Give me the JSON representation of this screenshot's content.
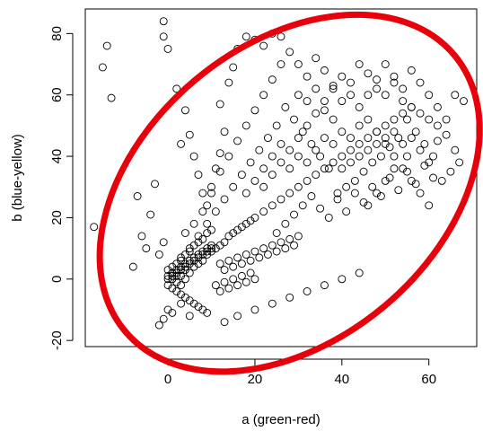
{
  "chart_data": {
    "type": "scatter",
    "xlabel": "a (green-red)",
    "ylabel": "b (blue-yellow)",
    "xlim": [
      -19,
      71
    ],
    "ylim": [
      -22,
      88
    ],
    "xticks": [
      0,
      20,
      40,
      60
    ],
    "xtick_labels": [
      "0",
      "20",
      "40",
      "60"
    ],
    "yticks": [
      -20,
      0,
      20,
      40,
      60,
      80
    ],
    "ytick_labels": [
      "-20",
      "0",
      "20",
      "40",
      "60",
      "80"
    ],
    "grid": false,
    "legend": "none",
    "marker": "open-circle",
    "marker_color": "#000000",
    "annotation": {
      "shape": "ellipse",
      "color": "#e8000b",
      "center": [
        28,
        28
      ],
      "semi_axes": [
        52,
        31
      ],
      "rotation_deg": 40
    },
    "points": [
      [
        -1,
        84
      ],
      [
        -1,
        79
      ],
      [
        0,
        75
      ],
      [
        -14,
        76
      ],
      [
        -15,
        69
      ],
      [
        -13,
        59
      ],
      [
        -17,
        17
      ],
      [
        -7,
        27
      ],
      [
        -8,
        4
      ],
      [
        -6,
        14
      ],
      [
        -5,
        10
      ],
      [
        -4,
        21
      ],
      [
        -3,
        31
      ],
      [
        -2,
        8
      ],
      [
        -1,
        12
      ],
      [
        -1,
        -13
      ],
      [
        -2,
        -15
      ],
      [
        0,
        -10
      ],
      [
        1,
        -11
      ],
      [
        3,
        -8
      ],
      [
        5,
        -12
      ],
      [
        2,
        62
      ],
      [
        4,
        55
      ],
      [
        5,
        47
      ],
      [
        6,
        40
      ],
      [
        3,
        44
      ],
      [
        7,
        34
      ],
      [
        8,
        28
      ],
      [
        9,
        24
      ],
      [
        10,
        30
      ],
      [
        11,
        36
      ],
      [
        12,
        41
      ],
      [
        13,
        48
      ],
      [
        12,
        57
      ],
      [
        14,
        64
      ],
      [
        15,
        69
      ],
      [
        16,
        75
      ],
      [
        18,
        79
      ],
      [
        20,
        78
      ],
      [
        22,
        76
      ],
      [
        24,
        80
      ],
      [
        26,
        79
      ],
      [
        28,
        74
      ],
      [
        30,
        70
      ],
      [
        32,
        66
      ],
      [
        34,
        72
      ],
      [
        36,
        68
      ],
      [
        38,
        63
      ],
      [
        40,
        58
      ],
      [
        42,
        64
      ],
      [
        44,
        70
      ],
      [
        46,
        67
      ],
      [
        48,
        62
      ],
      [
        50,
        60
      ],
      [
        52,
        64
      ],
      [
        54,
        58
      ],
      [
        56,
        56
      ],
      [
        58,
        54
      ],
      [
        60,
        52
      ],
      [
        62,
        50
      ],
      [
        64,
        47
      ],
      [
        66,
        42
      ],
      [
        67,
        38
      ],
      [
        65,
        35
      ],
      [
        63,
        32
      ],
      [
        61,
        40
      ],
      [
        59,
        44
      ],
      [
        57,
        48
      ],
      [
        55,
        52
      ],
      [
        53,
        46
      ],
      [
        51,
        43
      ],
      [
        49,
        40
      ],
      [
        47,
        38
      ],
      [
        45,
        35
      ],
      [
        43,
        32
      ],
      [
        41,
        30
      ],
      [
        39,
        28
      ],
      [
        37,
        36
      ],
      [
        35,
        40
      ],
      [
        33,
        44
      ],
      [
        31,
        48
      ],
      [
        29,
        52
      ],
      [
        27,
        56
      ],
      [
        25,
        50
      ],
      [
        23,
        46
      ],
      [
        21,
        42
      ],
      [
        19,
        38
      ],
      [
        17,
        34
      ],
      [
        15,
        30
      ],
      [
        13,
        26
      ],
      [
        11,
        22
      ],
      [
        9,
        18
      ],
      [
        7,
        14
      ],
      [
        5,
        10
      ],
      [
        3,
        6
      ],
      [
        1,
        2
      ],
      [
        0,
        0
      ],
      [
        1,
        1
      ],
      [
        2,
        2
      ],
      [
        3,
        1
      ],
      [
        4,
        3
      ],
      [
        2,
        -1
      ],
      [
        3,
        -2
      ],
      [
        4,
        0
      ],
      [
        5,
        2
      ],
      [
        6,
        4
      ],
      [
        7,
        5
      ],
      [
        8,
        6
      ],
      [
        9,
        8
      ],
      [
        10,
        9
      ],
      [
        11,
        10
      ],
      [
        12,
        11
      ],
      [
        13,
        12
      ],
      [
        14,
        14
      ],
      [
        15,
        15
      ],
      [
        16,
        16
      ],
      [
        17,
        17
      ],
      [
        18,
        18
      ],
      [
        19,
        19
      ],
      [
        20,
        20
      ],
      [
        0,
        3
      ],
      [
        1,
        4
      ],
      [
        2,
        5
      ],
      [
        3,
        7
      ],
      [
        4,
        8
      ],
      [
        5,
        9
      ],
      [
        6,
        11
      ],
      [
        7,
        12
      ],
      [
        8,
        13
      ],
      [
        9,
        15
      ],
      [
        10,
        16
      ],
      [
        0,
        -2
      ],
      [
        1,
        -3
      ],
      [
        2,
        -4
      ],
      [
        3,
        -5
      ],
      [
        4,
        -6
      ],
      [
        5,
        -7
      ],
      [
        6,
        -8
      ],
      [
        7,
        -9
      ],
      [
        8,
        -10
      ],
      [
        9,
        -11
      ],
      [
        0,
        1
      ],
      [
        1,
        0
      ],
      [
        2,
        1
      ],
      [
        3,
        3
      ],
      [
        4,
        4
      ],
      [
        5,
        5
      ],
      [
        6,
        6
      ],
      [
        7,
        7
      ],
      [
        8,
        8
      ],
      [
        9,
        9
      ],
      [
        10,
        10
      ],
      [
        1,
        2
      ],
      [
        2,
        3
      ],
      [
        3,
        4
      ],
      [
        4,
        5
      ],
      [
        5,
        6
      ],
      [
        6,
        7
      ],
      [
        7,
        8
      ],
      [
        8,
        9
      ],
      [
        9,
        10
      ],
      [
        10,
        11
      ],
      [
        12,
        5
      ],
      [
        13,
        3
      ],
      [
        14,
        6
      ],
      [
        15,
        4
      ],
      [
        16,
        7
      ],
      [
        17,
        5
      ],
      [
        18,
        8
      ],
      [
        19,
        6
      ],
      [
        20,
        9
      ],
      [
        21,
        7
      ],
      [
        22,
        10
      ],
      [
        23,
        8
      ],
      [
        24,
        11
      ],
      [
        25,
        9
      ],
      [
        26,
        12
      ],
      [
        27,
        10
      ],
      [
        28,
        13
      ],
      [
        29,
        11
      ],
      [
        30,
        14
      ],
      [
        11,
        -2
      ],
      [
        12,
        -4
      ],
      [
        13,
        -1
      ],
      [
        14,
        -3
      ],
      [
        15,
        0
      ],
      [
        16,
        -2
      ],
      [
        17,
        1
      ],
      [
        18,
        -1
      ],
      [
        19,
        2
      ],
      [
        20,
        0
      ],
      [
        13,
        -14
      ],
      [
        16,
        -12
      ],
      [
        20,
        -10
      ],
      [
        24,
        -8
      ],
      [
        28,
        -6
      ],
      [
        32,
        -4
      ],
      [
        36,
        -2
      ],
      [
        40,
        0
      ],
      [
        44,
        2
      ],
      [
        22,
        22
      ],
      [
        24,
        24
      ],
      [
        26,
        26
      ],
      [
        28,
        28
      ],
      [
        30,
        30
      ],
      [
        32,
        32
      ],
      [
        34,
        34
      ],
      [
        36,
        36
      ],
      [
        38,
        38
      ],
      [
        40,
        40
      ],
      [
        42,
        42
      ],
      [
        44,
        44
      ],
      [
        46,
        46
      ],
      [
        48,
        48
      ],
      [
        50,
        50
      ],
      [
        52,
        52
      ],
      [
        54,
        54
      ],
      [
        56,
        56
      ],
      [
        22,
        30
      ],
      [
        24,
        34
      ],
      [
        26,
        38
      ],
      [
        28,
        42
      ],
      [
        30,
        46
      ],
      [
        32,
        50
      ],
      [
        34,
        54
      ],
      [
        36,
        58
      ],
      [
        38,
        62
      ],
      [
        40,
        66
      ],
      [
        42,
        60
      ],
      [
        44,
        56
      ],
      [
        46,
        52
      ],
      [
        48,
        48
      ],
      [
        50,
        44
      ],
      [
        52,
        40
      ],
      [
        54,
        36
      ],
      [
        56,
        32
      ],
      [
        58,
        28
      ],
      [
        60,
        24
      ],
      [
        25,
        15
      ],
      [
        27,
        18
      ],
      [
        29,
        21
      ],
      [
        31,
        24
      ],
      [
        33,
        27
      ],
      [
        35,
        23
      ],
      [
        37,
        20
      ],
      [
        39,
        26
      ],
      [
        41,
        22
      ],
      [
        43,
        28
      ],
      [
        45,
        25
      ],
      [
        47,
        30
      ],
      [
        49,
        27
      ],
      [
        51,
        33
      ],
      [
        53,
        29
      ],
      [
        55,
        35
      ],
      [
        57,
        31
      ],
      [
        59,
        37
      ],
      [
        61,
        33
      ],
      [
        20,
        55
      ],
      [
        22,
        60
      ],
      [
        24,
        65
      ],
      [
        26,
        70
      ],
      [
        18,
        50
      ],
      [
        16,
        45
      ],
      [
        14,
        40
      ],
      [
        12,
        35
      ],
      [
        10,
        28
      ],
      [
        8,
        22
      ],
      [
        6,
        18
      ],
      [
        4,
        15
      ],
      [
        30,
        60
      ],
      [
        32,
        58
      ],
      [
        34,
        62
      ],
      [
        36,
        55
      ],
      [
        38,
        52
      ],
      [
        40,
        48
      ],
      [
        42,
        46
      ],
      [
        44,
        50
      ],
      [
        46,
        60
      ],
      [
        48,
        65
      ],
      [
        50,
        70
      ],
      [
        52,
        66
      ],
      [
        54,
        62
      ],
      [
        56,
        68
      ],
      [
        58,
        64
      ],
      [
        60,
        60
      ],
      [
        62,
        56
      ],
      [
        64,
        52
      ],
      [
        66,
        60
      ],
      [
        68,
        58
      ],
      [
        62,
        45
      ],
      [
        60,
        38
      ],
      [
        58,
        42
      ],
      [
        55,
        40
      ],
      [
        52,
        36
      ],
      [
        50,
        32
      ],
      [
        48,
        28
      ],
      [
        46,
        24
      ],
      [
        18,
        28
      ],
      [
        20,
        32
      ],
      [
        22,
        36
      ],
      [
        24,
        40
      ],
      [
        26,
        44
      ],
      [
        28,
        36
      ],
      [
        30,
        40
      ],
      [
        32,
        38
      ],
      [
        34,
        42
      ],
      [
        36,
        46
      ],
      [
        38,
        44
      ],
      [
        40,
        36
      ],
      [
        42,
        38
      ],
      [
        44,
        40
      ],
      [
        46,
        42
      ],
      [
        48,
        44
      ],
      [
        50,
        46
      ],
      [
        52,
        48
      ],
      [
        54,
        44
      ],
      [
        56,
        46
      ]
    ]
  }
}
